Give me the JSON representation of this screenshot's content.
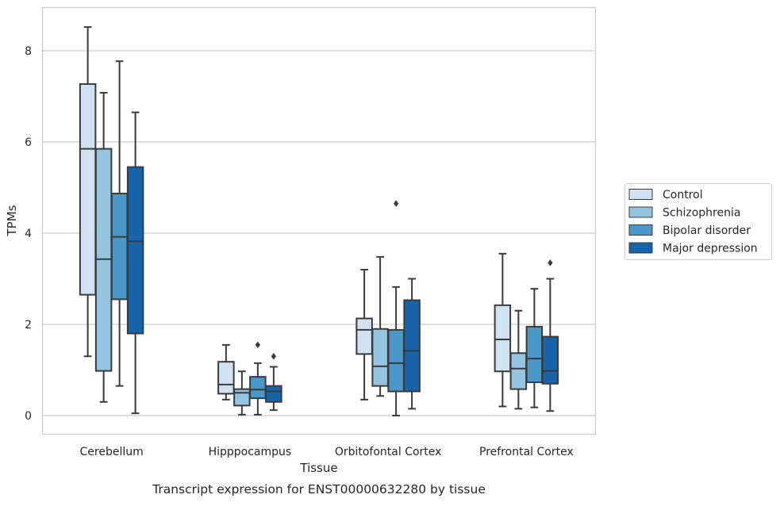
{
  "chart_data": {
    "type": "box",
    "xlabel": "Tissue",
    "ylabel": "TPMs",
    "caption": "Transcript expression for ENST00000632280 by tissue",
    "ylim": [
      -0.4,
      9.0
    ],
    "yticks": [
      0,
      2,
      4,
      6,
      8
    ],
    "grid": "horizontal",
    "legend_position": "right",
    "categories": [
      "Cerebellum",
      "Hipppocampus",
      "Orbitofontal Cortex",
      "Prefrontal Cortex"
    ],
    "series": [
      {
        "name": "Control",
        "color": "#d0e1f2",
        "boxes": [
          {
            "whislo": 1.3,
            "q1": 2.65,
            "med": 5.85,
            "q3": 7.27,
            "whishi": 8.52,
            "fliers": []
          },
          {
            "whislo": 0.35,
            "q1": 0.48,
            "med": 0.68,
            "q3": 1.18,
            "whishi": 1.55,
            "fliers": []
          },
          {
            "whislo": 0.35,
            "q1": 1.35,
            "med": 1.88,
            "q3": 2.13,
            "whishi": 3.2,
            "fliers": []
          },
          {
            "whislo": 0.2,
            "q1": 0.97,
            "med": 1.67,
            "q3": 2.42,
            "whishi": 3.55,
            "fliers": []
          }
        ]
      },
      {
        "name": "Schizophrenia",
        "color": "#94c4df",
        "boxes": [
          {
            "whislo": 0.3,
            "q1": 0.98,
            "med": 3.43,
            "q3": 5.85,
            "whishi": 7.08,
            "fliers": []
          },
          {
            "whislo": 0.02,
            "q1": 0.22,
            "med": 0.5,
            "q3": 0.58,
            "whishi": 0.97,
            "fliers": []
          },
          {
            "whislo": 0.43,
            "q1": 0.65,
            "med": 1.08,
            "q3": 1.9,
            "whishi": 3.48,
            "fliers": []
          },
          {
            "whislo": 0.15,
            "q1": 0.58,
            "med": 1.03,
            "q3": 1.37,
            "whishi": 2.3,
            "fliers": []
          }
        ]
      },
      {
        "name": "Bipolar disorder",
        "color": "#4a98c9",
        "boxes": [
          {
            "whislo": 0.65,
            "q1": 2.55,
            "med": 3.92,
            "q3": 4.87,
            "whishi": 7.77,
            "fliers": []
          },
          {
            "whislo": 0.02,
            "q1": 0.38,
            "med": 0.57,
            "q3": 0.85,
            "whishi": 1.15,
            "fliers": [
              1.55
            ]
          },
          {
            "whislo": 0.0,
            "q1": 0.53,
            "med": 1.15,
            "q3": 1.88,
            "whishi": 2.82,
            "fliers": [
              4.65
            ]
          },
          {
            "whislo": 0.18,
            "q1": 0.73,
            "med": 1.25,
            "q3": 1.95,
            "whishi": 2.78,
            "fliers": []
          }
        ]
      },
      {
        "name": "Major depression",
        "color": "#1764ab",
        "boxes": [
          {
            "whislo": 0.05,
            "q1": 1.8,
            "med": 3.82,
            "q3": 5.45,
            "whishi": 6.65,
            "fliers": []
          },
          {
            "whislo": 0.12,
            "q1": 0.3,
            "med": 0.53,
            "q3": 0.65,
            "whishi": 1.07,
            "fliers": [
              1.3
            ]
          },
          {
            "whislo": 0.15,
            "q1": 0.53,
            "med": 1.42,
            "q3": 2.53,
            "whishi": 3.0,
            "fliers": []
          },
          {
            "whislo": 0.1,
            "q1": 0.7,
            "med": 0.98,
            "q3": 1.73,
            "whishi": 3.0,
            "fliers": [
              3.35
            ]
          }
        ]
      }
    ]
  }
}
